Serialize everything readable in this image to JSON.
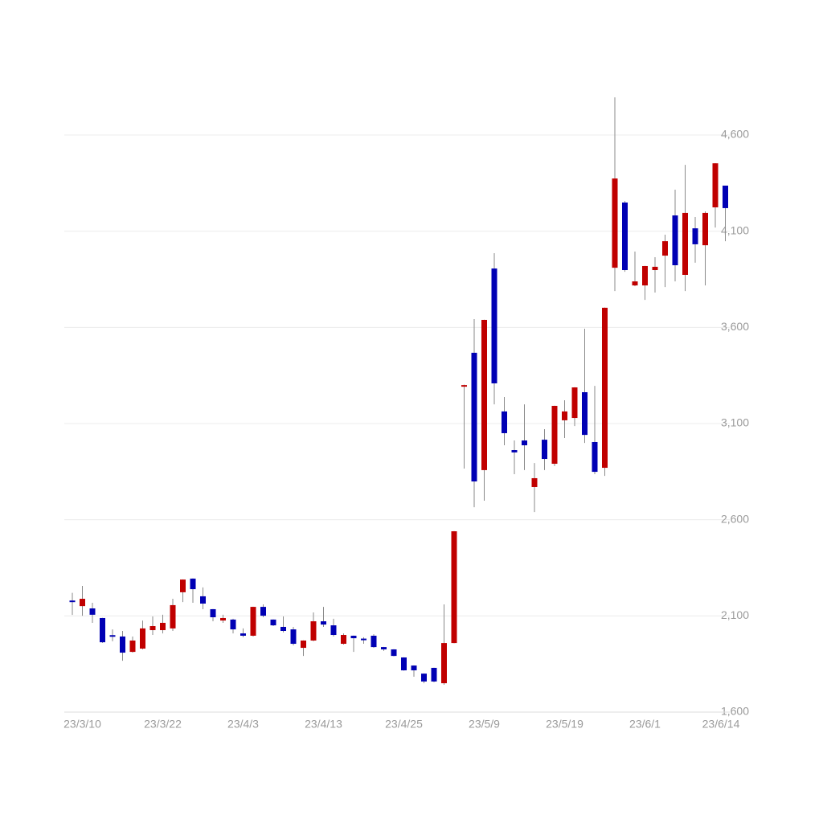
{
  "chart_data": {
    "type": "candlestick",
    "categories": [
      null,
      "23/3/10",
      null,
      null,
      null,
      null,
      null,
      null,
      null,
      "23/3/22",
      null,
      null,
      null,
      null,
      null,
      null,
      null,
      "23/4/3",
      null,
      null,
      null,
      null,
      null,
      null,
      null,
      "23/4/13",
      null,
      null,
      null,
      null,
      null,
      null,
      null,
      "23/4/25",
      null,
      null,
      null,
      null,
      null,
      null,
      null,
      "23/5/9",
      null,
      null,
      null,
      null,
      null,
      null,
      null,
      "23/5/19",
      null,
      null,
      null,
      null,
      null,
      null,
      null,
      "23/6/1",
      null,
      null,
      null,
      null,
      null,
      null,
      null,
      "23/6/14"
    ],
    "open": [
      2180,
      2151,
      2139,
      2089,
      2000,
      1993,
      1913,
      1930,
      2026,
      2026,
      2035,
      2223,
      2294,
      2202,
      2135,
      2076,
      2081,
      2009,
      1997,
      2147,
      2081,
      2043,
      2030,
      1934,
      1972,
      2072,
      2051,
      1955,
      1997,
      1982,
      1997,
      1938,
      1926,
      1884,
      1842,
      1800,
      1830,
      1750,
      1959,
      3300,
      3468,
      2858,
      3906,
      3163,
      2962,
      3012,
      2770,
      3016,
      2891,
      3117,
      3129,
      3263,
      3004,
      2870,
      3910,
      4249,
      3818,
      3818,
      3898,
      3973,
      4182,
      3873,
      4115,
      4027,
      4224,
      4337
    ],
    "high": [
      2220,
      2256,
      2168,
      2090,
      2030,
      2022,
      1993,
      2076,
      2097,
      2106,
      2189,
      2290,
      2295,
      2248,
      2136,
      2106,
      2085,
      2035,
      2148,
      2160,
      2082,
      2097,
      2043,
      1973,
      2118,
      2147,
      2085,
      2009,
      1998,
      1989,
      2005,
      1939,
      1927,
      1885,
      1843,
      1801,
      1831,
      2160,
      2541,
      3302,
      3643,
      3640,
      3986,
      3238,
      3012,
      3200,
      2895,
      3071,
      3193,
      3221,
      3289,
      3593,
      3296,
      3703,
      4796,
      4257,
      3994,
      3920,
      3965,
      4082,
      4316,
      4445,
      4174,
      4203,
      4454,
      4337
    ],
    "low": [
      2105,
      2101,
      2064,
      1960,
      1968,
      1867,
      1909,
      1926,
      2001,
      2009,
      2022,
      2172,
      2168,
      2135,
      2072,
      2064,
      2009,
      1989,
      1993,
      2093,
      2047,
      2014,
      1947,
      1892,
      1968,
      2043,
      1993,
      1951,
      1913,
      1955,
      1934,
      1918,
      1890,
      1815,
      1784,
      1750,
      1755,
      1742,
      1958,
      2866,
      2665,
      2699,
      3200,
      2987,
      2837,
      2858,
      2640,
      2858,
      2879,
      3025,
      3087,
      2999,
      2837,
      2828,
      3789,
      3889,
      3814,
      3743,
      3781,
      3810,
      3839,
      3789,
      3936,
      3818,
      4119,
      4048
    ],
    "close": [
      2175,
      2189,
      2106,
      1963,
      1997,
      1909,
      1972,
      2035,
      2047,
      2064,
      2156,
      2289,
      2239,
      2164,
      2093,
      2089,
      2030,
      1997,
      2147,
      2101,
      2051,
      2022,
      1955,
      1972,
      2072,
      2055,
      2001,
      2001,
      1984,
      1980,
      1938,
      1926,
      1892,
      1817,
      1817,
      1759,
      1759,
      1959,
      2540,
      3300,
      2799,
      3639,
      3309,
      3050,
      2950,
      2987,
      2816,
      2916,
      3192,
      3163,
      3288,
      3041,
      2849,
      3702,
      4374,
      3898,
      3839,
      3919,
      3915,
      4048,
      3923,
      4195,
      4032,
      4195,
      4453,
      4220
    ],
    "up_color": "#c00000",
    "down_color": "#0000b4",
    "ylim": [
      1600,
      4600
    ],
    "yticks": [
      {
        "value": 1600,
        "label": "1,600"
      },
      {
        "value": 2100,
        "label": "2,100"
      },
      {
        "value": 2600,
        "label": "2,600"
      },
      {
        "value": 3100,
        "label": "3,100"
      },
      {
        "value": 3600,
        "label": "3,600"
      },
      {
        "value": 4100,
        "label": "4,100"
      },
      {
        "value": 4600,
        "label": "4,600"
      }
    ],
    "grid": true
  }
}
